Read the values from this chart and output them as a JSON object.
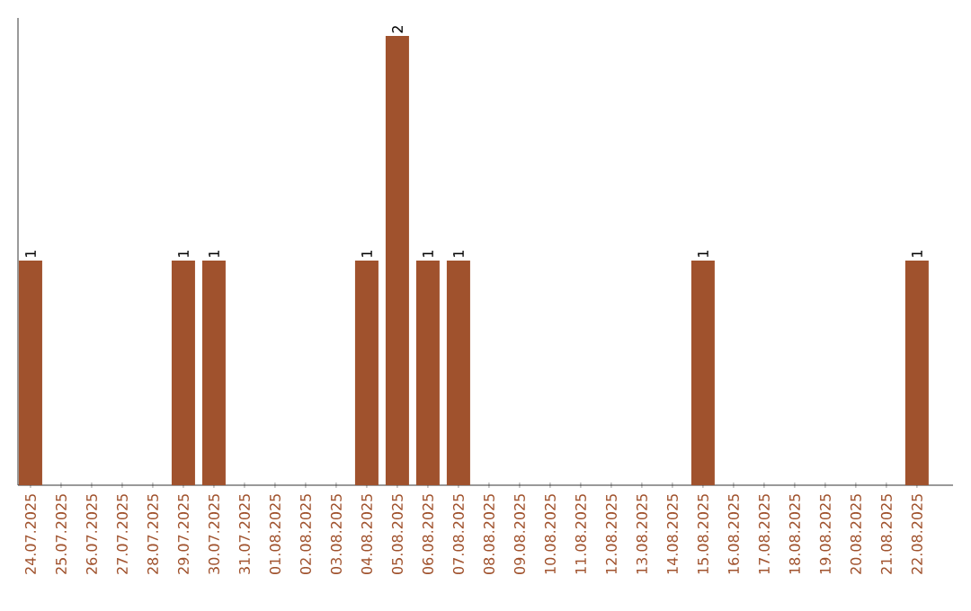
{
  "chart_data": {
    "type": "bar",
    "categories": [
      "24.07.2025",
      "25.07.2025",
      "26.07.2025",
      "27.07.2025",
      "28.07.2025",
      "29.07.2025",
      "30.07.2025",
      "31.07.2025",
      "01.08.2025",
      "02.08.2025",
      "03.08.2025",
      "04.08.2025",
      "05.08.2025",
      "06.08.2025",
      "07.08.2025",
      "08.08.2025",
      "09.08.2025",
      "10.08.2025",
      "11.08.2025",
      "12.08.2025",
      "13.08.2025",
      "14.08.2025",
      "15.08.2025",
      "16.08.2025",
      "17.08.2025",
      "18.08.2025",
      "19.08.2025",
      "20.08.2025",
      "21.08.2025",
      "22.08.2025"
    ],
    "values": [
      1,
      0,
      0,
      0,
      0,
      1,
      1,
      0,
      0,
      0,
      0,
      1,
      2,
      1,
      1,
      0,
      0,
      0,
      0,
      0,
      0,
      0,
      1,
      0,
      0,
      0,
      0,
      0,
      0,
      1
    ],
    "value_labels": [
      "1",
      null,
      null,
      null,
      null,
      "1",
      "1",
      null,
      null,
      null,
      null,
      "1",
      "2",
      "1",
      "1",
      null,
      null,
      null,
      null,
      null,
      null,
      null,
      "1",
      null,
      null,
      null,
      null,
      null,
      null,
      "1"
    ],
    "color": "#a0522d",
    "ylim": [
      0,
      2.08
    ]
  }
}
